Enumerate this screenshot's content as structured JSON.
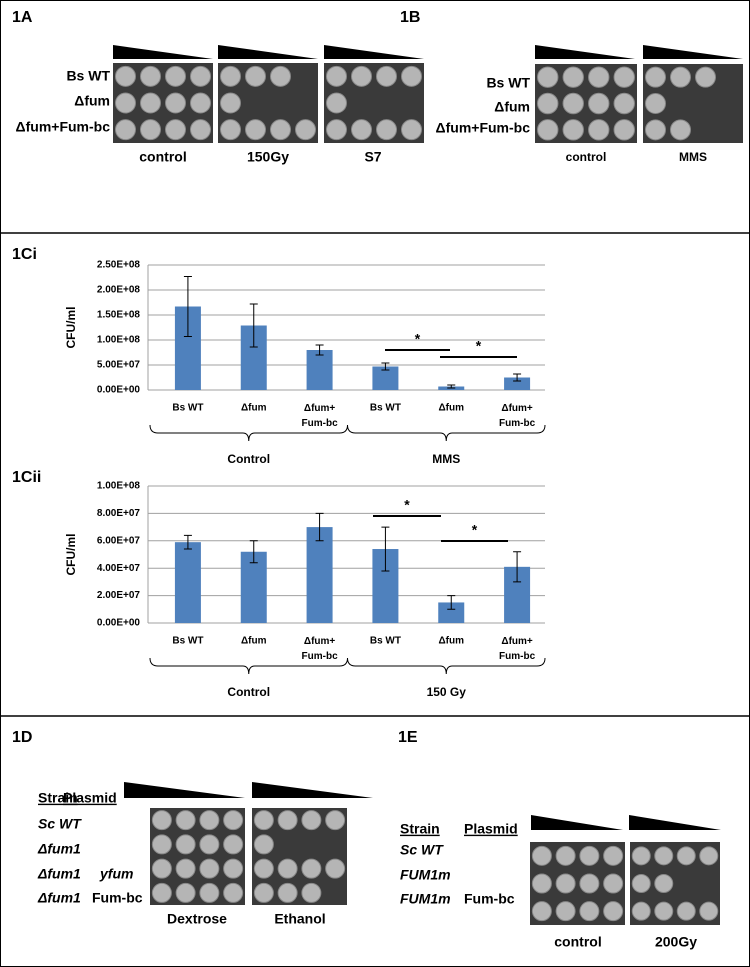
{
  "panel_a": {
    "label": "1A",
    "strains": [
      "Bs WT",
      "Δfum",
      "Δfum+Fum-bc"
    ],
    "conditions": [
      "control",
      "150Gy",
      "S7"
    ]
  },
  "panel_b": {
    "label": "1B",
    "strains": [
      "Bs WT",
      "Δfum",
      "Δfum+Fum-bc"
    ],
    "conditions": [
      "control",
      "MMS"
    ]
  },
  "panel_d": {
    "label": "1D",
    "headers": [
      "Strain",
      "Plasmid"
    ],
    "rows": [
      {
        "strain": "Sc WT"
      },
      {
        "strain": "Δfum1"
      },
      {
        "strain": "Δfum1",
        "plasmid": "yfum"
      },
      {
        "strain": "Δfum1",
        "plasmid": "Fum-bc"
      }
    ],
    "conditions": [
      "Dextrose",
      "Ethanol"
    ]
  },
  "panel_e": {
    "label": "1E",
    "headers": [
      "Strain",
      "Plasmid"
    ],
    "rows": [
      {
        "strain": "Sc WT"
      },
      {
        "strain": "FUM1m"
      },
      {
        "strain": "FUM1m",
        "plasmid": "Fum-bc"
      }
    ],
    "conditions": [
      "control",
      "200Gy"
    ]
  },
  "chart_data": [
    {
      "type": "bar",
      "title": "1Ci",
      "y_label": "CFU/ml",
      "categories": [
        "Bs WT",
        "Δfum",
        "Δfum+\nFum-bc",
        "Bs WT",
        "Δfum",
        "Δfum+\nFum-bc"
      ],
      "groups": [
        "Control",
        "MMS"
      ],
      "series": [
        {
          "color": "#4f81bd",
          "values": [
            167000000,
            129000000,
            80000000,
            47000000,
            7000000,
            25000000
          ],
          "errors": [
            60000000,
            43000000,
            10000000,
            7000000,
            3000000,
            7000000
          ]
        }
      ],
      "ylim": [
        0,
        250000000
      ],
      "yticks": [
        {
          "value": 0,
          "label": "0.00E+00"
        },
        {
          "value": 50000000,
          "label": "5.00E+07"
        },
        {
          "value": 100000000,
          "label": "1.00E+08"
        },
        {
          "value": 150000000,
          "label": "1.50E+08"
        },
        {
          "value": 200000000,
          "label": "2.00E+08"
        },
        {
          "value": 250000000,
          "label": "2.50E+08"
        }
      ],
      "grid": true,
      "annotations": [
        "*",
        "*"
      ]
    },
    {
      "type": "bar",
      "title": "1Cii",
      "y_label": "CFU/ml",
      "categories": [
        "Bs WT",
        "Δfum",
        "Δfum+\nFum-bc",
        "Bs WT",
        "Δfum",
        "Δfum+\nFum-bc"
      ],
      "groups": [
        "Control",
        "150 Gy"
      ],
      "series": [
        {
          "color": "#4f81bd",
          "values": [
            59000000,
            52000000,
            70000000,
            54000000,
            15000000,
            41000000
          ],
          "errors": [
            5000000,
            8000000,
            10000000,
            16000000,
            5000000,
            11000000
          ]
        }
      ],
      "ylim": [
        0,
        100000000
      ],
      "yticks": [
        {
          "value": 0,
          "label": "0.00E+00"
        },
        {
          "value": 20000000,
          "label": "2.00E+07"
        },
        {
          "value": 40000000,
          "label": "4.00E+07"
        },
        {
          "value": 60000000,
          "label": "6.00E+07"
        },
        {
          "value": 80000000,
          "label": "8.00E+07"
        },
        {
          "value": 100000000,
          "label": "1.00E+08"
        }
      ],
      "grid": true,
      "annotations": [
        "*",
        "*"
      ]
    }
  ]
}
